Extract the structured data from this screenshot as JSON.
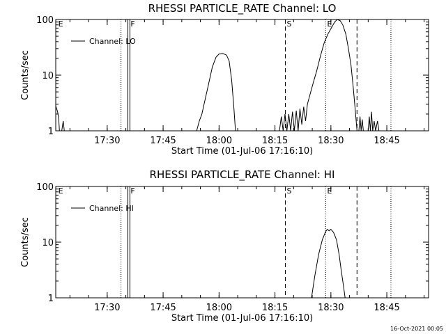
{
  "footer": {
    "timestamp": "16-Oct-2021 00:05"
  },
  "chart_data": [
    {
      "type": "line",
      "title": "RHESSI PARTICLE_RATE Channel: LO",
      "xlabel": "Start Time (01-Jul-06 17:16:10)",
      "ylabel": "Counts/sec",
      "y_scale": "log",
      "ylim": [
        1,
        100
      ],
      "xlim_minutes": [
        0,
        100
      ],
      "x_ticks": [
        {
          "label": "17:30",
          "minute": 13.8
        },
        {
          "label": "17:45",
          "minute": 28.8
        },
        {
          "label": "18:00",
          "minute": 43.8
        },
        {
          "label": "18:15",
          "minute": 58.8
        },
        {
          "label": "18:30",
          "minute": 73.8
        },
        {
          "label": "18:45",
          "minute": 88.8
        }
      ],
      "y_ticks": [
        {
          "label": "1",
          "value": 1
        },
        {
          "label": "10",
          "value": 10
        },
        {
          "label": "100",
          "value": 100
        }
      ],
      "legend": {
        "label": "Channel: LO",
        "position": "top-left"
      },
      "markers": [
        {
          "label": "E",
          "minute": 0.3,
          "style": "none"
        },
        {
          "label": "",
          "minute": 17.5,
          "style": "dotted"
        },
        {
          "label": "F",
          "minute": 19.7,
          "style": "solid-double"
        },
        {
          "label": "S",
          "minute": 61.6,
          "style": "dashed"
        },
        {
          "label": "E",
          "minute": 72.4,
          "style": "dotted"
        },
        {
          "label": "",
          "minute": 80.8,
          "style": "dashed"
        },
        {
          "label": "",
          "minute": 89.9,
          "style": "dotted"
        }
      ],
      "series": [
        {
          "name": "Channel: LO",
          "segments": [
            [
              [
                0,
                2.8
              ],
              [
                0.5,
                2.2
              ],
              [
                0.8,
                1.6
              ],
              [
                1.0,
                1.0
              ]
            ],
            [
              [
                1.6,
                1.0
              ],
              [
                2.0,
                1.5
              ],
              [
                2.3,
                1.0
              ]
            ],
            [
              [
                37.8,
                1.0
              ],
              [
                38.5,
                1.5
              ],
              [
                39.2,
                2.0
              ],
              [
                40.0,
                3.5
              ],
              [
                41.0,
                7.0
              ],
              [
                42.0,
                14.0
              ],
              [
                43.0,
                21.0
              ],
              [
                43.8,
                24.0
              ],
              [
                44.8,
                24.5
              ],
              [
                45.8,
                23.0
              ],
              [
                46.5,
                18.0
              ],
              [
                47.2,
                8.0
              ],
              [
                47.8,
                2.5
              ],
              [
                48.2,
                1.0
              ]
            ],
            [
              [
                60.0,
                1.0
              ],
              [
                60.5,
                1.8
              ],
              [
                61.0,
                1.0
              ],
              [
                61.5,
                2.0
              ],
              [
                62.0,
                1.0
              ],
              [
                62.5,
                2.0
              ],
              [
                63.0,
                1.0
              ],
              [
                63.5,
                2.2
              ],
              [
                64.0,
                1.0
              ],
              [
                64.5,
                2.3
              ],
              [
                65.0,
                1.0
              ],
              [
                65.5,
                2.5
              ],
              [
                66.0,
                1.3
              ],
              [
                66.5,
                2.7
              ],
              [
                67.0,
                1.5
              ],
              [
                67.5,
                3.0
              ],
              [
                68.0,
                4.0
              ],
              [
                69.0,
                7.0
              ],
              [
                70.0,
                12.0
              ],
              [
                71.0,
                22.0
              ],
              [
                72.0,
                38.0
              ],
              [
                73.0,
                55.0
              ],
              [
                74.0,
                72.0
              ],
              [
                74.8,
                90.0
              ],
              [
                75.5,
                100.0
              ],
              [
                76.3,
                95.0
              ],
              [
                77.0,
                80.0
              ],
              [
                77.8,
                55.0
              ],
              [
                78.5,
                30.0
              ],
              [
                79.2,
                15.0
              ],
              [
                79.8,
                6.0
              ],
              [
                80.3,
                2.5
              ],
              [
                80.8,
                1.0
              ]
            ],
            [
              [
                81.3,
                1.0
              ],
              [
                81.6,
                1.8
              ],
              [
                81.9,
                1.0
              ],
              [
                82.2,
                1.6
              ],
              [
                82.5,
                1.0
              ]
            ],
            [
              [
                83.8,
                1.0
              ],
              [
                84.1,
                1.8
              ],
              [
                84.4,
                1.0
              ],
              [
                84.7,
                2.2
              ],
              [
                85.0,
                1.0
              ],
              [
                85.4,
                1.5
              ],
              [
                85.8,
                1.0
              ],
              [
                86.3,
                1.5
              ],
              [
                86.7,
                1.0
              ]
            ]
          ]
        }
      ]
    },
    {
      "type": "line",
      "title": "RHESSI PARTICLE_RATE Channel: HI",
      "xlabel": "Start Time (01-Jul-06 17:16:10)",
      "ylabel": "Counts/sec",
      "y_scale": "log",
      "ylim": [
        1,
        100
      ],
      "xlim_minutes": [
        0,
        100
      ],
      "x_ticks": [
        {
          "label": "17:30",
          "minute": 13.8
        },
        {
          "label": "17:45",
          "minute": 28.8
        },
        {
          "label": "18:00",
          "minute": 43.8
        },
        {
          "label": "18:15",
          "minute": 58.8
        },
        {
          "label": "18:30",
          "minute": 73.8
        },
        {
          "label": "18:45",
          "minute": 88.8
        }
      ],
      "y_ticks": [
        {
          "label": "1",
          "value": 1
        },
        {
          "label": "10",
          "value": 10
        },
        {
          "label": "100",
          "value": 100
        }
      ],
      "legend": {
        "label": "Channel: HI",
        "position": "top-left"
      },
      "markers": [
        {
          "label": "E",
          "minute": 0.3,
          "style": "none"
        },
        {
          "label": "",
          "minute": 17.5,
          "style": "dotted"
        },
        {
          "label": "F",
          "minute": 19.7,
          "style": "solid-double"
        },
        {
          "label": "S",
          "minute": 61.6,
          "style": "dashed"
        },
        {
          "label": "E",
          "minute": 72.4,
          "style": "dotted"
        },
        {
          "label": "",
          "minute": 80.8,
          "style": "dashed"
        },
        {
          "label": "",
          "minute": 89.9,
          "style": "dotted"
        }
      ],
      "series": [
        {
          "name": "Channel: HI",
          "segments": [
            [
              [
                68.6,
                1.0
              ],
              [
                69.5,
                2.5
              ],
              [
                70.5,
                6.0
              ],
              [
                71.5,
                11.0
              ],
              [
                72.3,
                15.0
              ],
              [
                72.8,
                17.0
              ],
              [
                73.3,
                16.0
              ],
              [
                73.8,
                17.0
              ],
              [
                74.5,
                15.0
              ],
              [
                75.3,
                11.0
              ],
              [
                76.0,
                6.0
              ],
              [
                76.6,
                3.0
              ],
              [
                77.2,
                1.6
              ],
              [
                77.6,
                1.0
              ]
            ]
          ]
        }
      ]
    }
  ]
}
